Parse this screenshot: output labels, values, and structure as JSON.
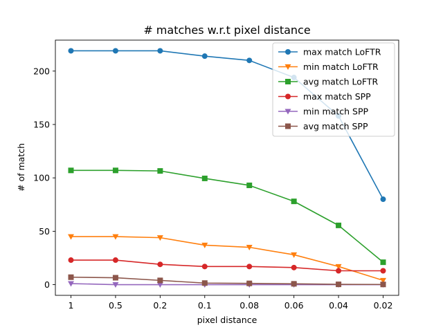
{
  "chart_data": {
    "type": "line",
    "title": "# matches w.r.t pixel distance",
    "xlabel": "pixel distance",
    "ylabel": "# of match",
    "categories": [
      "1",
      "0.5",
      "0.2",
      "0.1",
      "0.08",
      "0.06",
      "0.04",
      "0.02"
    ],
    "ylim": [
      -10,
      229
    ],
    "yticks": [
      0,
      50,
      100,
      150,
      200
    ],
    "grid": false,
    "legend_position": "top-right",
    "series": [
      {
        "name": "max match LoFTR",
        "color": "#1f77b4",
        "marker": "circle",
        "values": [
          219,
          219,
          219,
          214,
          210,
          194,
          158,
          80
        ]
      },
      {
        "name": "min match LoFTR",
        "color": "#ff7f0e",
        "marker": "triangle-down",
        "values": [
          45,
          45,
          44,
          37,
          35,
          28,
          17,
          4
        ]
      },
      {
        "name": "avg match LoFTR",
        "color": "#2ca02c",
        "marker": "square",
        "values": [
          107,
          107,
          106.5,
          99.5,
          93,
          78,
          55.5,
          21
        ]
      },
      {
        "name": "max match SPP",
        "color": "#d62728",
        "marker": "circle",
        "values": [
          23,
          23,
          19,
          17,
          17,
          16,
          13,
          13
        ]
      },
      {
        "name": "min match SPP",
        "color": "#9467bd",
        "marker": "triangle-down",
        "values": [
          1,
          0,
          0,
          0,
          0,
          0,
          0,
          0
        ]
      },
      {
        "name": "avg match SPP",
        "color": "#8c564b",
        "marker": "square",
        "values": [
          7,
          6.5,
          4,
          1.5,
          1.2,
          0.8,
          0.3,
          0.2
        ]
      }
    ]
  }
}
